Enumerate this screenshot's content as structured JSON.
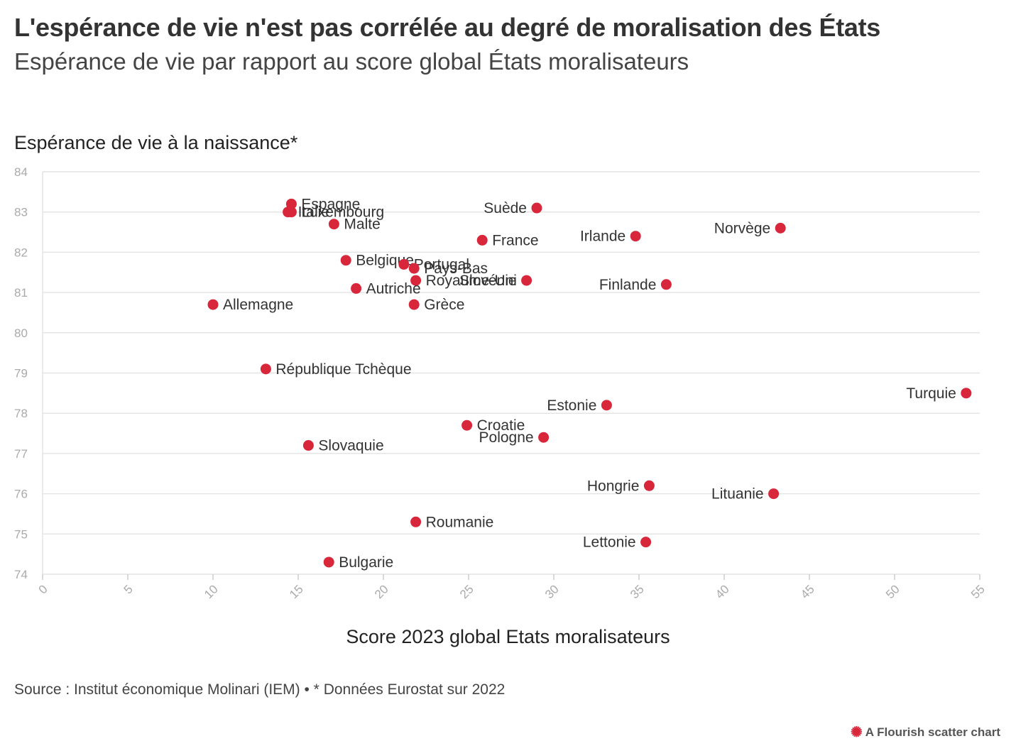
{
  "header": {
    "title": "L'espérance de vie n'est pas corrélée au degré de moralisation des États",
    "subtitle": "Espérance de vie par rapport au score global États moralisateurs"
  },
  "footer": {
    "source": "Source : Institut économique Molinari (IEM) • * Données Eurostat sur 2022",
    "brand": "A Flourish scatter chart",
    "brand_icon": "flourish-logo-icon"
  },
  "colors": {
    "point": "#d8263a",
    "grid": "#e4e4e4",
    "text": "#333333"
  },
  "chart_data": {
    "type": "scatter",
    "title": "L'espérance de vie n'est pas corrélée au degré de moralisation des États",
    "subtitle": "Espérance de vie par rapport au score global États moralisateurs",
    "xlabel": "Score 2023 global Etats moralisateurs",
    "ylabel": "Espérance de vie à la naissance*",
    "xlim": [
      0,
      55
    ],
    "ylim": [
      74,
      84
    ],
    "xticks": [
      "0",
      "5",
      "10",
      "15",
      "20",
      "25",
      "30",
      "35",
      "40",
      "45",
      "50",
      "55"
    ],
    "yticks": [
      "74",
      "75",
      "76",
      "77",
      "78",
      "79",
      "80",
      "81",
      "82",
      "83",
      "84"
    ],
    "grid": true,
    "points": [
      {
        "label": "Espagne",
        "x": 14.6,
        "y": 83.2,
        "side": "right"
      },
      {
        "label": "Italie",
        "x": 14.4,
        "y": 83.0,
        "side": "right"
      },
      {
        "label": "Luxembourg",
        "x": 14.6,
        "y": 83.0,
        "side": "right"
      },
      {
        "label": "Malte",
        "x": 17.1,
        "y": 82.7,
        "side": "right"
      },
      {
        "label": "Suède",
        "x": 29.0,
        "y": 83.1,
        "side": "left"
      },
      {
        "label": "France",
        "x": 25.8,
        "y": 82.3,
        "side": "right"
      },
      {
        "label": "Irlande",
        "x": 34.8,
        "y": 82.4,
        "side": "left"
      },
      {
        "label": "Norvège",
        "x": 43.3,
        "y": 82.6,
        "side": "left"
      },
      {
        "label": "Belgique",
        "x": 17.8,
        "y": 81.8,
        "side": "right"
      },
      {
        "label": "Portugal",
        "x": 21.2,
        "y": 81.7,
        "side": "right"
      },
      {
        "label": "Pays-Bas",
        "x": 21.8,
        "y": 81.6,
        "side": "right"
      },
      {
        "label": "Royaume-Uni",
        "x": 21.9,
        "y": 81.3,
        "side": "right"
      },
      {
        "label": "Slovénie",
        "x": 28.4,
        "y": 81.3,
        "side": "left"
      },
      {
        "label": "Finlande",
        "x": 36.6,
        "y": 81.2,
        "side": "left"
      },
      {
        "label": "Autriche",
        "x": 18.4,
        "y": 81.1,
        "side": "right"
      },
      {
        "label": "Allemagne",
        "x": 10.0,
        "y": 80.7,
        "side": "right"
      },
      {
        "label": "Grèce",
        "x": 21.8,
        "y": 80.7,
        "side": "right"
      },
      {
        "label": "République Tchèque",
        "x": 13.1,
        "y": 79.1,
        "side": "right"
      },
      {
        "label": "Turquie",
        "x": 54.2,
        "y": 78.5,
        "side": "left"
      },
      {
        "label": "Estonie",
        "x": 33.1,
        "y": 78.2,
        "side": "left"
      },
      {
        "label": "Croatie",
        "x": 24.9,
        "y": 77.7,
        "side": "right"
      },
      {
        "label": "Pologne",
        "x": 29.4,
        "y": 77.4,
        "side": "left"
      },
      {
        "label": "Slovaquie",
        "x": 15.6,
        "y": 77.2,
        "side": "right"
      },
      {
        "label": "Hongrie",
        "x": 35.6,
        "y": 76.2,
        "side": "left"
      },
      {
        "label": "Lituanie",
        "x": 42.9,
        "y": 76.0,
        "side": "left"
      },
      {
        "label": "Roumanie",
        "x": 21.9,
        "y": 75.3,
        "side": "right"
      },
      {
        "label": "Lettonie",
        "x": 35.4,
        "y": 74.8,
        "side": "left"
      },
      {
        "label": "Bulgarie",
        "x": 16.8,
        "y": 74.3,
        "side": "right"
      }
    ]
  }
}
